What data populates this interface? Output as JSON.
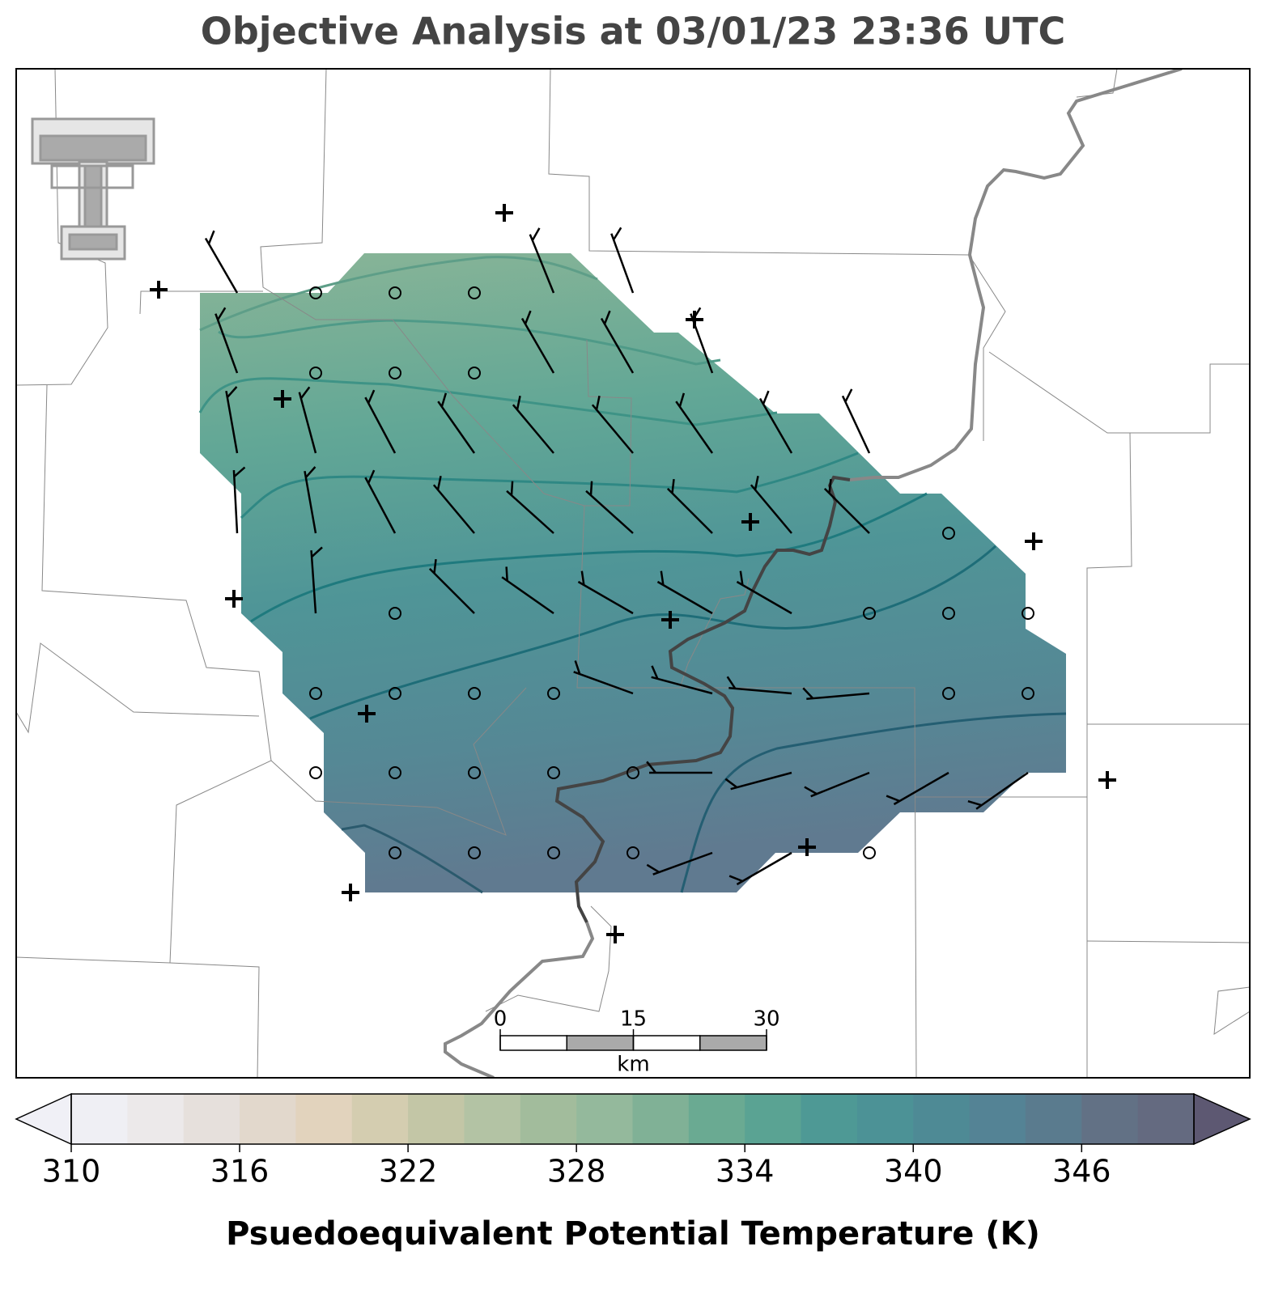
{
  "title": "Objective Analysis at 03/01/23 23:36 UTC",
  "scalebar": {
    "lim": [
      0,
      30
    ],
    "ticks": [
      0,
      15,
      30
    ],
    "unit": "km"
  },
  "colorbar": {
    "label": "Psuedoequivalent Potential Temperature (K)",
    "lim": [
      310,
      350
    ],
    "ticks": [
      310,
      316,
      322,
      328,
      334,
      340,
      346
    ],
    "colors": [
      "#efeff4",
      "#ece9ea",
      "#e6e0dc",
      "#e2d8cc",
      "#e2d3bd",
      "#d4cdb0",
      "#c3c6a6",
      "#b3c3a4",
      "#a2bc9c",
      "#94b99c",
      "#80b196",
      "#6aaa92",
      "#5aa393",
      "#4e9995",
      "#4c9296",
      "#4e8a95",
      "#548395",
      "#5a7b8e",
      "#627185",
      "#646a80"
    ],
    "extend_colors": [
      "#f0f0f6",
      "#5d5872"
    ]
  }
}
